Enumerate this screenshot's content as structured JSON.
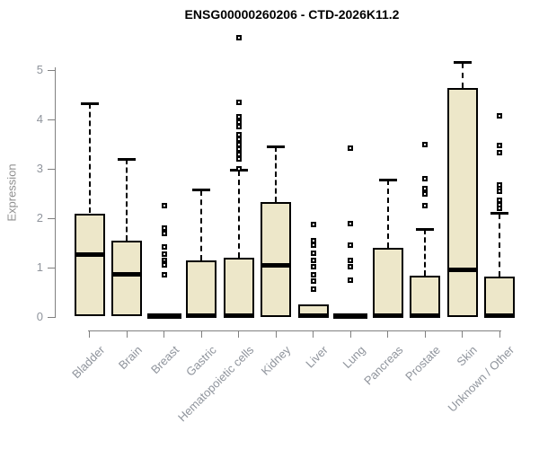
{
  "chart_data": {
    "type": "box",
    "title": "ENSG00000260206 - CTD-2026K11.2",
    "ylabel": "Expression",
    "ylim": [
      0,
      5
    ],
    "yticks": [
      0,
      1,
      2,
      3,
      4,
      5
    ],
    "grid": false,
    "legend": "none",
    "categories": [
      "Bladder",
      "Brain",
      "Breast",
      "Gastric",
      "Hematopoietic cells",
      "Kidney",
      "Liver",
      "Lung",
      "Pancreas",
      "Prostate",
      "Skin",
      "Unknown / Other"
    ],
    "series": [
      {
        "name": "Bladder",
        "q1": 0.02,
        "median": 1.27,
        "q3": 2.1,
        "whisker_high": 4.32,
        "outliers": []
      },
      {
        "name": "Brain",
        "q1": 0.02,
        "median": 0.87,
        "q3": 1.55,
        "whisker_high": 3.2,
        "outliers": []
      },
      {
        "name": "Breast",
        "q1": 0.0,
        "median": 0.02,
        "q3": 0.04,
        "whisker_high": null,
        "outliers": [
          2.25,
          1.8,
          1.7,
          1.42,
          1.28,
          1.15,
          1.1,
          1.05,
          0.85
        ]
      },
      {
        "name": "Gastric",
        "q1": 0.0,
        "median": 0.03,
        "q3": 1.15,
        "whisker_high": 2.57,
        "outliers": []
      },
      {
        "name": "Hematopoietic cells",
        "q1": 0.0,
        "median": 0.03,
        "q3": 1.2,
        "whisker_high": 2.97,
        "outliers": [
          5.65,
          4.35,
          4.05,
          3.95,
          3.85,
          3.7,
          3.6,
          3.5,
          3.4,
          3.3,
          3.2,
          3.0
        ]
      },
      {
        "name": "Kidney",
        "q1": 0.0,
        "median": 1.05,
        "q3": 2.33,
        "whisker_high": 3.45,
        "outliers": []
      },
      {
        "name": "Liver",
        "q1": 0.0,
        "median": 0.03,
        "q3": 0.25,
        "whisker_high": null,
        "outliers": [
          1.87,
          1.55,
          1.45,
          1.3,
          1.14,
          1.02,
          0.85,
          0.72,
          0.57
        ]
      },
      {
        "name": "Lung",
        "q1": 0.0,
        "median": 0.02,
        "q3": 0.04,
        "whisker_high": null,
        "outliers": [
          3.42,
          1.9,
          1.46,
          1.15,
          1.02,
          0.75
        ]
      },
      {
        "name": "Pancreas",
        "q1": 0.0,
        "median": 0.03,
        "q3": 1.4,
        "whisker_high": 2.78,
        "outliers": []
      },
      {
        "name": "Prostate",
        "q1": 0.0,
        "median": 0.03,
        "q3": 0.83,
        "whisker_high": 1.78,
        "outliers": [
          3.5,
          2.8,
          2.6,
          2.5,
          2.25
        ]
      },
      {
        "name": "Skin",
        "q1": 0.0,
        "median": 0.95,
        "q3": 4.63,
        "whisker_high": 5.15,
        "outliers": []
      },
      {
        "name": "Unknown / Other",
        "q1": 0.0,
        "median": 0.03,
        "q3": 0.82,
        "whisker_high": 2.1,
        "outliers": [
          4.08,
          3.47,
          3.33,
          2.68,
          2.6,
          2.54,
          2.36,
          2.28,
          2.2
        ]
      }
    ],
    "colors": {
      "box_fill": "#EDE7C9",
      "box_stroke": "#000000",
      "median": "#000000",
      "axis": "#808080",
      "tick_text": "#8F949C",
      "title_text": "#000000"
    }
  }
}
